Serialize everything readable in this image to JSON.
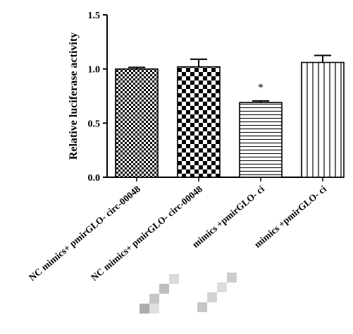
{
  "chart_data": {
    "type": "bar",
    "ylabel": "Relative luciferase activity",
    "ylim": [
      0,
      1.5
    ],
    "yticks": [
      "0.0",
      "0.5",
      "1.0",
      "1.5"
    ],
    "categories": [
      "NC mimics+ pmirGLO- circ-00048",
      "NC mimics+ pmirGLO- circ-00048",
      "mimics +pmirGLO- ci",
      "mimics +pmirGLO- ci"
    ],
    "values": [
      1.0,
      1.02,
      0.69,
      1.06
    ],
    "errors": [
      0.015,
      0.07,
      0.015,
      0.065
    ],
    "patterns": [
      "checker-small",
      "checker-large",
      "horizontal-lines",
      "vertical-lines"
    ],
    "annotations": [
      {
        "category_index": 2,
        "text": "*"
      }
    ],
    "grid": false,
    "legend": "none"
  },
  "colors": {
    "bar_edge": "#000000",
    "pattern_ink": "#000000",
    "background": "#ffffff"
  }
}
